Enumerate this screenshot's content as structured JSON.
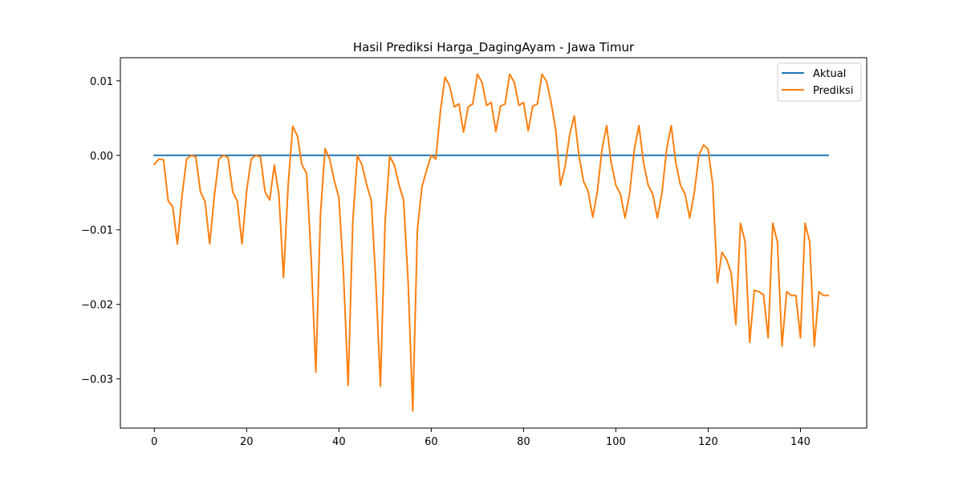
{
  "chart_data": {
    "type": "line",
    "title": "Hasil Prediksi Harga_DagingAyam - Jawa Timur",
    "xlabel": "",
    "ylabel": "",
    "xlim": [
      -7.35,
      154.35
    ],
    "ylim": [
      -0.0366,
      0.0131
    ],
    "xticks": [
      0,
      20,
      40,
      60,
      80,
      100,
      120,
      140
    ],
    "xtick_labels": [
      "0",
      "20",
      "40",
      "60",
      "80",
      "100",
      "120",
      "140"
    ],
    "yticks": [
      -0.03,
      -0.02,
      -0.01,
      0.0,
      0.01
    ],
    "ytick_labels": [
      "−0.03",
      "−0.02",
      "−0.01",
      "0.00",
      "0.01"
    ],
    "grid": false,
    "legend_position": "top-right",
    "series": [
      {
        "name": "Aktual",
        "color": "#1f77b4",
        "x_start": 0,
        "values": [
          0,
          0,
          0,
          0,
          0,
          0,
          0,
          0,
          0,
          0,
          0,
          0,
          0,
          0,
          0,
          0,
          0,
          0,
          0,
          0,
          0,
          0,
          0,
          0,
          0,
          0,
          0,
          0,
          0,
          0,
          0,
          0,
          0,
          0,
          0,
          0,
          0,
          0,
          0,
          0,
          0,
          0,
          0,
          0,
          0,
          0,
          0,
          0,
          0,
          0,
          0,
          0,
          0,
          0,
          0,
          0,
          0,
          0,
          0,
          0,
          0,
          0,
          0,
          0,
          0,
          0,
          0,
          0,
          0,
          0,
          0,
          0,
          0,
          0,
          0,
          0,
          0,
          0,
          0,
          0,
          0,
          0,
          0,
          0,
          0,
          0,
          0,
          0,
          0,
          0,
          0,
          0,
          0,
          0,
          0,
          0,
          0,
          0,
          0,
          0,
          0,
          0,
          0,
          0,
          0,
          0,
          0,
          0,
          0,
          0,
          0,
          0,
          0,
          0,
          0,
          0,
          0,
          0,
          0,
          0,
          0,
          0,
          0,
          0,
          0,
          0,
          0,
          0,
          0,
          0,
          0,
          0,
          0,
          0,
          0,
          0,
          0,
          0,
          0,
          0,
          0,
          0,
          0,
          0,
          0,
          0,
          0
        ]
      },
      {
        "name": "Prediksi",
        "color": "#ff7f0e",
        "x_start": 0,
        "values": [
          -0.0012,
          -0.0005,
          -0.0006,
          -0.0061,
          -0.0069,
          -0.0119,
          -0.0055,
          -0.0005,
          0.0,
          -0.0002,
          -0.0049,
          -0.0062,
          -0.0119,
          -0.0055,
          -0.0005,
          0.0,
          -0.0003,
          -0.0049,
          -0.0062,
          -0.0119,
          -0.0048,
          -0.0005,
          0.0,
          -0.0002,
          -0.0049,
          -0.006,
          -0.0013,
          -0.0053,
          -0.0164,
          -0.004,
          0.0039,
          0.0026,
          -0.0013,
          -0.0024,
          -0.014,
          -0.0291,
          -0.008,
          0.0009,
          -0.0005,
          -0.0034,
          -0.0057,
          -0.016,
          -0.0309,
          -0.009,
          0.0,
          -0.0013,
          -0.0039,
          -0.006,
          -0.017,
          -0.031,
          -0.009,
          -0.0001,
          -0.0013,
          -0.0039,
          -0.006,
          -0.017,
          -0.0343,
          -0.01,
          -0.0042,
          -0.002,
          0.0,
          -0.0005,
          0.006,
          0.0105,
          0.0093,
          0.0065,
          0.0069,
          0.0031,
          0.0065,
          0.0069,
          0.0109,
          0.0098,
          0.0067,
          0.0071,
          0.0032,
          0.0066,
          0.0069,
          0.0109,
          0.0098,
          0.0067,
          0.0071,
          0.0033,
          0.0066,
          0.0069,
          0.0109,
          0.0099,
          0.007,
          0.0033,
          -0.004,
          -0.0015,
          0.0028,
          0.0053,
          0.0,
          -0.0035,
          -0.0048,
          -0.0083,
          -0.0048,
          0.0008,
          0.004,
          -0.001,
          -0.004,
          -0.0052,
          -0.0084,
          -0.005,
          0.0008,
          0.004,
          -0.001,
          -0.004,
          -0.0052,
          -0.0084,
          -0.005,
          0.0008,
          0.004,
          -0.001,
          -0.004,
          -0.0052,
          -0.0084,
          -0.005,
          0.0,
          0.0014,
          0.0008,
          -0.004,
          -0.0171,
          -0.013,
          -0.014,
          -0.0158,
          -0.0227,
          -0.0091,
          -0.0116,
          -0.0251,
          -0.0181,
          -0.0183,
          -0.0187,
          -0.0245,
          -0.0091,
          -0.0116,
          -0.0256,
          -0.0183,
          -0.0188,
          -0.0188,
          -0.0245,
          -0.0091,
          -0.0116,
          -0.0256,
          -0.0183,
          -0.0188,
          -0.0188
        ]
      }
    ]
  }
}
